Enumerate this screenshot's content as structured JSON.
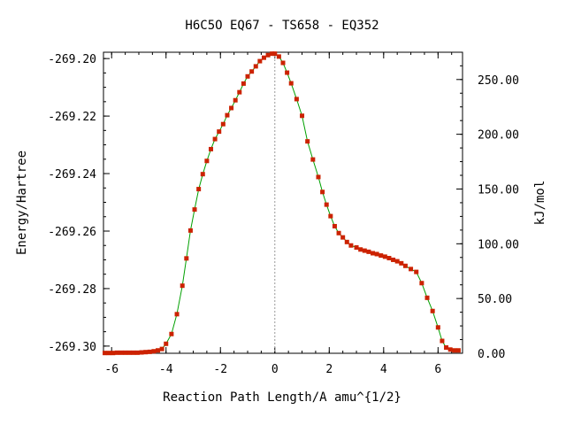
{
  "chart_data": {
    "type": "line",
    "title": "H6C5O   EQ67 - TS658 - EQ352",
    "xlabel": "Reaction Path Length/A amu^{1/2}",
    "ylabel": "Energy/Hartree",
    "y2label": "kJ/mol",
    "xlim": [
      -6.3,
      6.9
    ],
    "ylim": [
      -269.3025,
      -269.1978
    ],
    "y2lim": [
      0,
      274.9
    ],
    "x_ticks": [
      -6,
      -4,
      -2,
      0,
      2,
      4,
      6
    ],
    "x_tick_labels": [
      "-6",
      "-4",
      "-2",
      "0",
      "2",
      "4",
      "6"
    ],
    "y_ticks": [
      -269.3,
      -269.28,
      -269.26,
      -269.24,
      -269.22,
      -269.2
    ],
    "y_tick_labels": [
      "-269.30",
      "-269.28",
      "-269.26",
      "-269.24",
      "-269.22",
      "-269.20"
    ],
    "y2_ticks": [
      0,
      50,
      100,
      150,
      200,
      250
    ],
    "y2_tick_labels": [
      "0.00",
      "50.00",
      "100.00",
      "150.00",
      "200.00",
      "250.00"
    ],
    "ts_marker_x": 0,
    "line_color": "#00a000",
    "point_color": "#cc2200",
    "series": [
      {
        "x": [
          -6.25,
          -6.1,
          -5.95,
          -5.8,
          -5.65,
          -5.5,
          -5.35,
          -5.2,
          -5.05,
          -4.9,
          -4.75,
          -4.6,
          -4.45,
          -4.3,
          -4.15,
          -4.0,
          -3.8,
          -3.6,
          -3.4,
          -3.25,
          -3.1,
          -2.95,
          -2.8,
          -2.65,
          -2.5,
          -2.35,
          -2.2,
          -2.05,
          -1.9,
          -1.75,
          -1.6,
          -1.45,
          -1.3,
          -1.15,
          -1.0,
          -0.85,
          -0.7,
          -0.55,
          -0.4,
          -0.25,
          -0.1,
          0.0,
          0.15,
          0.3,
          0.45,
          0.6,
          0.8,
          1.0,
          1.2,
          1.4,
          1.6,
          1.75,
          1.9,
          2.05,
          2.2,
          2.35,
          2.5,
          2.65,
          2.8,
          3.0,
          3.15,
          3.3,
          3.45,
          3.6,
          3.75,
          3.9,
          4.05,
          4.2,
          4.35,
          4.5,
          4.65,
          4.8,
          5.0,
          5.2,
          5.4,
          5.6,
          5.8,
          6.0,
          6.15,
          6.3,
          6.45,
          6.6,
          6.75
        ],
        "y": [
          -269.3024,
          -269.3024,
          -269.3024,
          -269.3023,
          -269.3023,
          -269.3023,
          -269.3023,
          -269.3023,
          -269.3023,
          -269.3022,
          -269.3021,
          -269.302,
          -269.3018,
          -269.3015,
          -269.301,
          -269.2992,
          -269.2958,
          -269.2889,
          -269.279,
          -269.2695,
          -269.2598,
          -269.2525,
          -269.2454,
          -269.2402,
          -269.2356,
          -269.2315,
          -269.228,
          -269.2254,
          -269.2228,
          -269.2197,
          -269.2172,
          -269.2145,
          -269.2117,
          -269.2087,
          -269.2062,
          -269.2045,
          -269.2027,
          -269.2009,
          -269.1997,
          -269.1988,
          -269.1983,
          -269.1983,
          -269.1993,
          -269.2015,
          -269.2049,
          -269.2086,
          -269.2141,
          -269.2199,
          -269.2288,
          -269.2351,
          -269.2412,
          -269.2464,
          -269.2508,
          -269.2548,
          -269.2583,
          -269.2607,
          -269.2622,
          -269.2638,
          -269.265,
          -269.2657,
          -269.2664,
          -269.2668,
          -269.2672,
          -269.2677,
          -269.268,
          -269.2685,
          -269.2689,
          -269.2694,
          -269.27,
          -269.2705,
          -269.2712,
          -269.2721,
          -269.2732,
          -269.2742,
          -269.2781,
          -269.2832,
          -269.2878,
          -269.2935,
          -269.2982,
          -269.3005,
          -269.3012,
          -269.3015,
          -269.3015
        ]
      }
    ]
  }
}
